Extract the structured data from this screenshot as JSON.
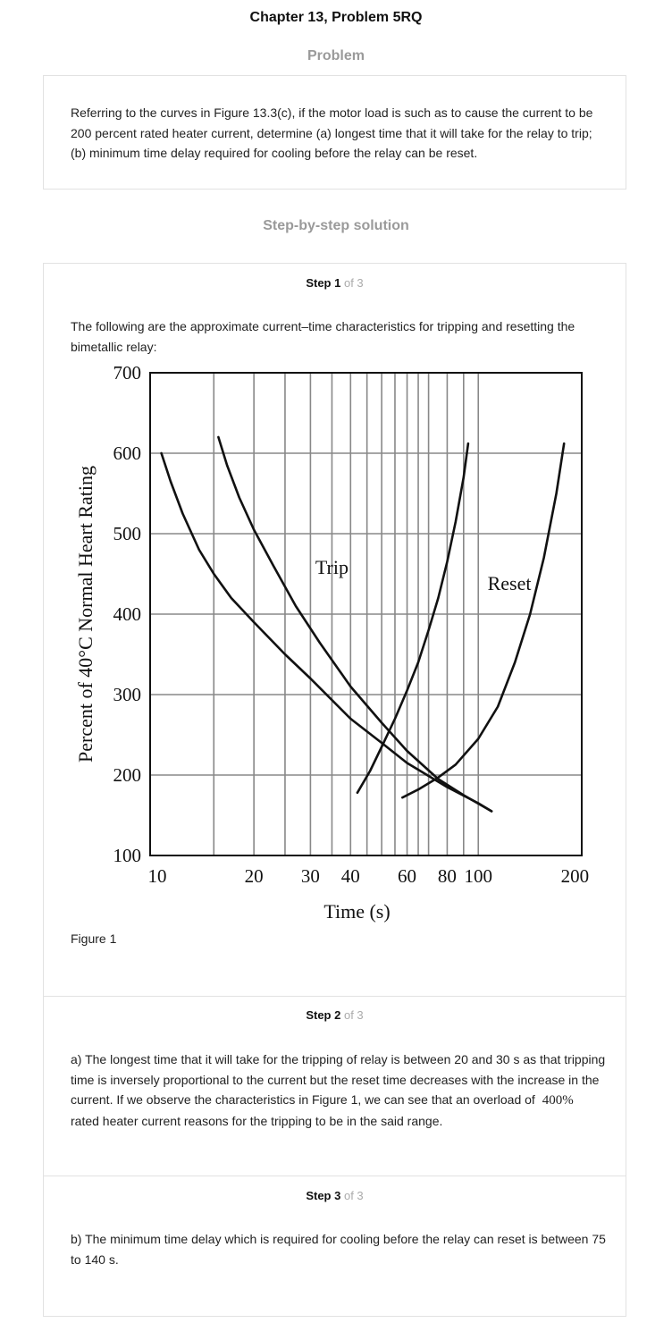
{
  "page": {
    "title": "Chapter 13, Problem 5RQ",
    "problem_label": "Problem",
    "solution_label": "Step-by-step solution"
  },
  "problem": {
    "text": "Referring to the curves in Figure 13.3(c), if the motor load is such as to cause the current to be 200 percent rated heater current, determine (a) longest time that it will take for the relay to trip; (b) minimum time delay required for cooling before the relay can be reset."
  },
  "steps": [
    {
      "label": "Step 1",
      "of": "of 3",
      "text": "The following are the approximate current–time characteristics for tripping and resetting the bimetallic relay:",
      "figure_caption": "Figure 1"
    },
    {
      "label": "Step 2",
      "of": "of 3",
      "text_before": "a) The longest time that it will take for the tripping of relay is between 20 and 30 s as that tripping time is inversely proportional to the current but the reset time decreases with the increase in the current. If we observe the characteristics in Figure 1, we can see that an overload of",
      "math": "400%",
      "text_after": "rated heater current reasons for the tripping to be in the said range."
    },
    {
      "label": "Step 3",
      "of": "of 3",
      "text": "b) The minimum time delay which is required for cooling before the relay can reset is between 75 to 140 s."
    }
  ],
  "chart_data": {
    "type": "line",
    "title": "",
    "xlabel": "Time (s)",
    "ylabel": "Percent of 40°C Normal Heart Rating",
    "x_scale": "log",
    "xlim": [
      9.5,
      210
    ],
    "ylim": [
      100,
      700
    ],
    "x_ticks": [
      10,
      20,
      30,
      40,
      60,
      80,
      100,
      200
    ],
    "x_tick_labels": [
      "10",
      "20",
      "30",
      "40",
      "60",
      "80",
      "100",
      "200"
    ],
    "x_gridlines": [
      15,
      20,
      25,
      30,
      35,
      40,
      45,
      50,
      55,
      60,
      65,
      70,
      80,
      90,
      100
    ],
    "y_ticks": [
      100,
      200,
      300,
      400,
      500,
      600,
      700
    ],
    "y_tick_labels": [
      "100",
      "200",
      "300",
      "400",
      "500",
      "600",
      "700"
    ],
    "grid": true,
    "annotations": [
      {
        "text": "Trip",
        "x": 35,
        "y": 450
      },
      {
        "text": "Reset",
        "x": 125,
        "y": 430
      }
    ],
    "series": [
      {
        "x": [
          10.3,
          11,
          12,
          13.5,
          15,
          17,
          20,
          25,
          30,
          40,
          50,
          60,
          80,
          100,
          110
        ],
        "y": [
          600,
          565,
          525,
          480,
          450,
          420,
          390,
          350,
          320,
          270,
          240,
          215,
          185,
          165,
          155
        ]
      },
      {
        "x": [
          15.5,
          16.5,
          18,
          20,
          23,
          27,
          32,
          40,
          50,
          60,
          75,
          90,
          110
        ],
        "y": [
          620,
          585,
          545,
          505,
          460,
          410,
          365,
          310,
          265,
          230,
          195,
          175,
          155
        ]
      },
      {
        "x": [
          42,
          46,
          50,
          55,
          60,
          65,
          70,
          75,
          80,
          85,
          90,
          93
        ],
        "y": [
          178,
          205,
          235,
          270,
          305,
          340,
          380,
          420,
          465,
          515,
          570,
          612
        ]
      },
      {
        "x": [
          58,
          65,
          75,
          85,
          100,
          115,
          130,
          145,
          160,
          175,
          185
        ],
        "y": [
          172,
          182,
          197,
          213,
          245,
          285,
          340,
          400,
          470,
          550,
          612
        ]
      }
    ]
  }
}
